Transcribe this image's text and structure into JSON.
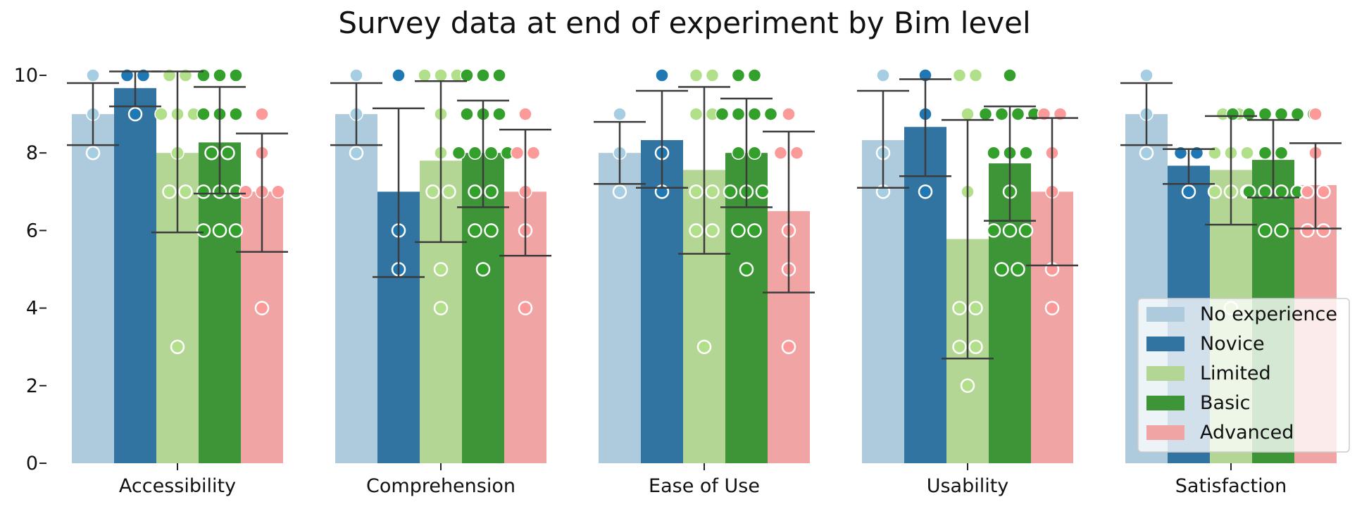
{
  "chart_data": {
    "type": "bar",
    "title": "Survey data at end of experiment by Bim level",
    "xlabel": "",
    "ylabel": "",
    "ylim": [
      0,
      10
    ],
    "yticks": [
      0,
      2,
      4,
      6,
      8,
      10
    ],
    "categories": [
      "Accessibility",
      "Comprehension",
      "Ease of Use",
      "Usability",
      "Satisfaction"
    ],
    "legend_position": "lower-right",
    "series": [
      {
        "name": "No experience",
        "color": "#aecbdd",
        "point_color": "#a6cee3",
        "values": [
          9.0,
          9.0,
          8.0,
          8.33,
          9.0
        ],
        "ci": [
          [
            8.2,
            9.8
          ],
          [
            8.2,
            9.8
          ],
          [
            7.2,
            8.8
          ],
          [
            7.1,
            9.6
          ],
          [
            8.2,
            9.8
          ]
        ],
        "points": [
          [
            10,
            9,
            8
          ],
          [
            10,
            9,
            8
          ],
          [
            9,
            8,
            7
          ],
          [
            10,
            8,
            7
          ],
          [
            10,
            9,
            8
          ]
        ]
      },
      {
        "name": "Novice",
        "color": "#3174a1",
        "point_color": "#1f78b4",
        "values": [
          9.67,
          7.0,
          8.33,
          8.67,
          7.67
        ],
        "ci": [
          [
            9.2,
            10.1
          ],
          [
            4.8,
            9.15
          ],
          [
            7.1,
            9.6
          ],
          [
            7.4,
            9.9
          ],
          [
            7.2,
            8.1
          ]
        ],
        "points": [
          [
            10,
            10,
            9
          ],
          [
            10,
            6,
            5
          ],
          [
            10,
            8,
            7
          ],
          [
            10,
            9,
            7
          ],
          [
            8,
            8,
            7
          ]
        ]
      },
      {
        "name": "Limited",
        "color": "#b3d694",
        "point_color": "#b2df8a",
        "values": [
          8.0,
          7.8,
          7.56,
          5.78,
          7.56
        ],
        "ci": [
          [
            5.95,
            10.1
          ],
          [
            5.7,
            9.85
          ],
          [
            5.4,
            9.7
          ],
          [
            2.7,
            8.85
          ],
          [
            6.15,
            8.95
          ]
        ],
        "points": [
          [
            10,
            10,
            9,
            9,
            9,
            8,
            7,
            7,
            3
          ],
          [
            10,
            10,
            10,
            9,
            8,
            7,
            7,
            5,
            4
          ],
          [
            10,
            10,
            9,
            9,
            7,
            7,
            6,
            6,
            3
          ],
          [
            10,
            10,
            9,
            7,
            4,
            4,
            3,
            3,
            2
          ],
          [
            9,
            9,
            8,
            8,
            8,
            7,
            7,
            7,
            4
          ]
        ]
      },
      {
        "name": "Basic",
        "color": "#3e9538",
        "point_color": "#33a02c",
        "values": [
          8.27,
          8.0,
          8.0,
          7.73,
          7.82
        ],
        "ci": [
          [
            6.95,
            9.7
          ],
          [
            6.6,
            9.35
          ],
          [
            6.6,
            9.4
          ],
          [
            6.25,
            9.2
          ],
          [
            6.85,
            8.85
          ]
        ],
        "points": [
          [
            10,
            10,
            10,
            9,
            9,
            9,
            8,
            8,
            7,
            7,
            7,
            6,
            6,
            6
          ],
          [
            10,
            10,
            10,
            9,
            9,
            9,
            8,
            8,
            8,
            8,
            7,
            7,
            6,
            6,
            5
          ],
          [
            10,
            10,
            9,
            9,
            9,
            9,
            8,
            8,
            7,
            7,
            7,
            6,
            6,
            5
          ],
          [
            10,
            9,
            9,
            9,
            9,
            8,
            8,
            8,
            7,
            6,
            6,
            6,
            5,
            5
          ],
          [
            9,
            9,
            9,
            9,
            9,
            9,
            8,
            8,
            7,
            7,
            7,
            7,
            6,
            6
          ]
        ]
      },
      {
        "name": "Advanced",
        "color": "#f0a4a4",
        "point_color": "#fb9a99",
        "values": [
          7.0,
          7.0,
          6.5,
          7.0,
          7.17
        ],
        "ci": [
          [
            5.45,
            8.5
          ],
          [
            5.35,
            8.6
          ],
          [
            4.4,
            8.55
          ],
          [
            5.1,
            8.9
          ],
          [
            6.05,
            8.25
          ]
        ],
        "points": [
          [
            9,
            8,
            7,
            7,
            7,
            4
          ],
          [
            9,
            8,
            8,
            7,
            6,
            4
          ],
          [
            9,
            8,
            8,
            6,
            5,
            3
          ],
          [
            9,
            9,
            8,
            7,
            5,
            4
          ],
          [
            9,
            8,
            7,
            7,
            6,
            6
          ]
        ]
      }
    ]
  }
}
